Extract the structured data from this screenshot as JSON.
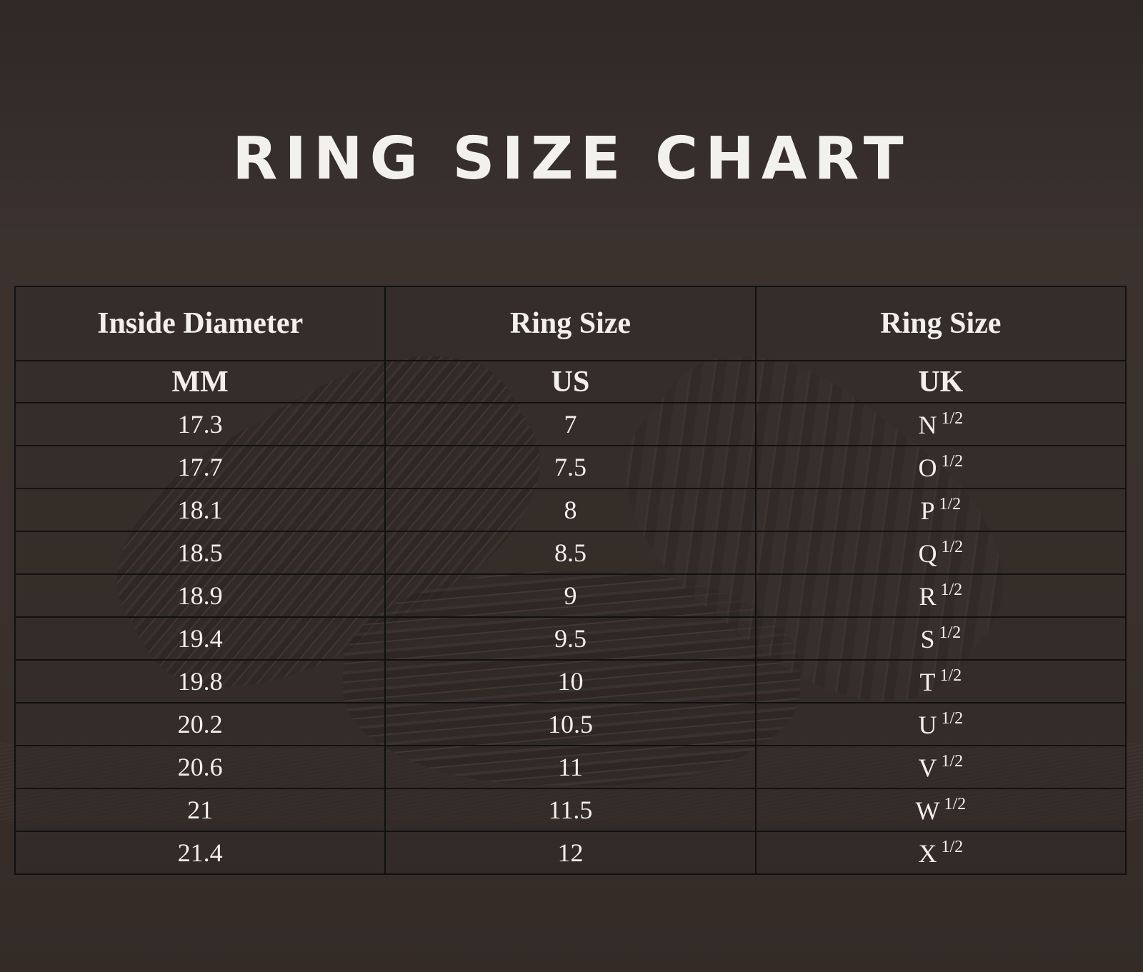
{
  "title": "RING SIZE CHART",
  "table": {
    "headers": [
      "Inside Diameter",
      "Ring Size",
      "Ring Size"
    ],
    "units": [
      "MM",
      "US",
      "UK"
    ],
    "uk_suffix": "1/2",
    "rows": [
      {
        "mm": "17.3",
        "us": "7",
        "uk": "N"
      },
      {
        "mm": "17.7",
        "us": "7.5",
        "uk": "O"
      },
      {
        "mm": "18.1",
        "us": "8",
        "uk": "P"
      },
      {
        "mm": "18.5",
        "us": "8.5",
        "uk": "Q"
      },
      {
        "mm": "18.9",
        "us": "9",
        "uk": "R"
      },
      {
        "mm": "19.4",
        "us": "9.5",
        "uk": "S"
      },
      {
        "mm": "19.8",
        "us": "10",
        "uk": "T"
      },
      {
        "mm": "20.2",
        "us": "10.5",
        "uk": "U"
      },
      {
        "mm": "20.6",
        "us": "11",
        "uk": "V"
      },
      {
        "mm": "21",
        "us": "11.5",
        "uk": "W"
      },
      {
        "mm": "21.4",
        "us": "12",
        "uk": "X"
      }
    ]
  }
}
